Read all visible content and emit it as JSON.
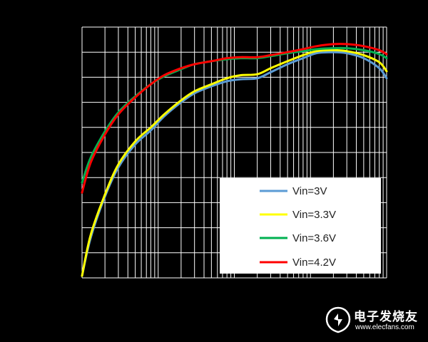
{
  "chart_data": {
    "type": "line",
    "title": "",
    "xlabel": "",
    "ylabel": "",
    "x_scale": "log",
    "xlim": [
      0.1,
      1000
    ],
    "ylim": [
      70,
      95
    ],
    "grid": true,
    "legend_position": "bottom-right",
    "series": [
      {
        "name": "Vin=3V",
        "color": "#5b9bd5",
        "x": [
          0.1,
          0.13,
          0.2,
          0.3,
          0.5,
          0.8,
          1.2,
          2,
          3,
          5,
          8,
          12,
          20,
          30,
          50,
          80,
          120,
          200,
          300,
          500,
          800,
          1000
        ],
        "y": [
          70.2,
          74.0,
          78.1,
          81.0,
          83.3,
          84.7,
          86.1,
          87.5,
          88.4,
          89.1,
          89.6,
          89.8,
          89.9,
          90.5,
          91.3,
          91.9,
          92.4,
          92.5,
          92.4,
          91.9,
          90.9,
          89.9
        ]
      },
      {
        "name": "Vin=3.3V",
        "color": "#ffff00",
        "x": [
          0.1,
          0.13,
          0.2,
          0.3,
          0.5,
          0.8,
          1.2,
          2,
          3,
          5,
          8,
          12,
          20,
          30,
          50,
          80,
          120,
          200,
          300,
          500,
          800,
          1000
        ],
        "y": [
          70.2,
          74.3,
          78.3,
          81.3,
          83.6,
          85.0,
          86.3,
          87.7,
          88.6,
          89.3,
          89.9,
          90.2,
          90.3,
          90.9,
          91.6,
          92.2,
          92.6,
          92.7,
          92.6,
          92.2,
          91.5,
          90.6
        ]
      },
      {
        "name": "Vin=3.6V",
        "color": "#00b050",
        "x": [
          0.1,
          0.13,
          0.2,
          0.3,
          0.5,
          0.8,
          1.2,
          2,
          3,
          5,
          8,
          12,
          20,
          30,
          50,
          80,
          120,
          200,
          300,
          500,
          800,
          1000
        ],
        "y": [
          79.5,
          82.0,
          84.6,
          86.5,
          88.1,
          89.3,
          90.1,
          90.8,
          91.3,
          91.6,
          91.8,
          91.9,
          91.9,
          92.1,
          92.4,
          92.6,
          92.8,
          92.9,
          92.9,
          92.7,
          92.3,
          91.9
        ]
      },
      {
        "name": "Vin=4.2V",
        "color": "#ff0000",
        "x": [
          0.1,
          0.13,
          0.2,
          0.3,
          0.5,
          0.8,
          1.2,
          2,
          3,
          5,
          8,
          12,
          20,
          30,
          50,
          80,
          120,
          200,
          300,
          500,
          800,
          1000
        ],
        "y": [
          78.5,
          81.5,
          84.3,
          86.3,
          88.0,
          89.3,
          90.2,
          90.9,
          91.3,
          91.6,
          91.9,
          92.0,
          92.0,
          92.2,
          92.5,
          92.8,
          93.1,
          93.3,
          93.3,
          93.1,
          92.7,
          92.3
        ]
      }
    ]
  },
  "watermark": {
    "name": "电子发烧友",
    "url": "www.elecfans.com"
  }
}
